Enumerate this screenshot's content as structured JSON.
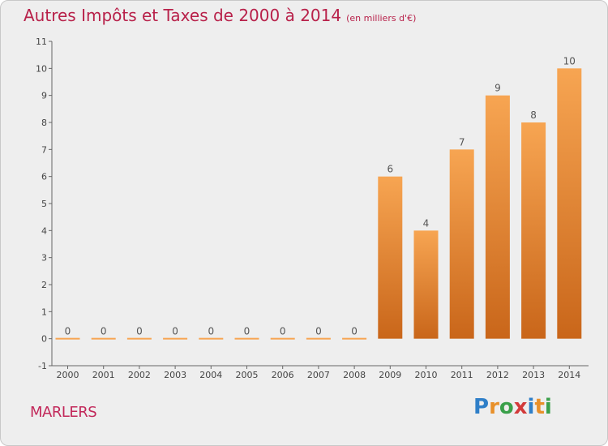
{
  "chart_data": {
    "type": "bar",
    "title": "Autres Impôts et Taxes de 2000 à 2014",
    "subtitle": "(en milliers d'€)",
    "categories": [
      "2000",
      "2001",
      "2002",
      "2003",
      "2004",
      "2005",
      "2006",
      "2007",
      "2008",
      "2009",
      "2010",
      "2011",
      "2012",
      "2013",
      "2014"
    ],
    "values": [
      0,
      0,
      0,
      0,
      0,
      0,
      0,
      0,
      0,
      6,
      4,
      7,
      9,
      8,
      10
    ],
    "data_labels": [
      "0",
      "0",
      "0",
      "0",
      "0",
      "0",
      "0",
      "0",
      "0",
      "6",
      "4",
      "7",
      "9",
      "8",
      "10"
    ],
    "y_ticks": [
      "-1",
      "0",
      "1",
      "2",
      "3",
      "4",
      "5",
      "6",
      "7",
      "8",
      "9",
      "10",
      "11"
    ],
    "ylim": [
      -1,
      11
    ],
    "xlabel": "",
    "ylabel": "",
    "grid": false,
    "colors": {
      "bar_top": "#f7a552",
      "bar_bottom": "#c9661a",
      "background": "#eeeeee",
      "title": "#b8214a"
    }
  },
  "footer": {
    "commune": "MARLERS"
  },
  "logo": {
    "letters": [
      "P",
      "r",
      "o",
      "x",
      "i",
      "t",
      "i"
    ],
    "colors": [
      "#2f7fc8",
      "#e8902a",
      "#3aa04a",
      "#d23a3a",
      "#2f7fc8",
      "#e8902a",
      "#3aa04a"
    ]
  }
}
